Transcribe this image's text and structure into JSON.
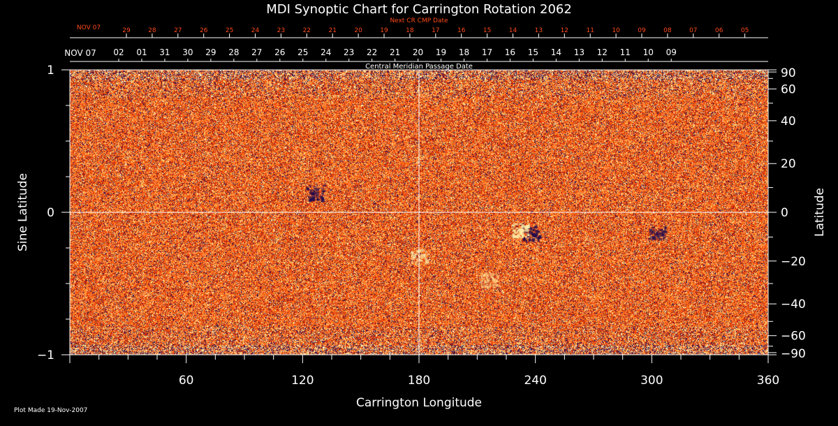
{
  "chart_data": {
    "type": "heatmap",
    "title": "MDI Synoptic Chart for Carrington Rotation 2062",
    "xlabel": "Carrington Longitude",
    "ylabel_left": "Sine Latitude",
    "ylabel_right": "Latitude",
    "top_axis_label": "Central Meridian Passage Date",
    "next_cr_label": "Next CR CMP Date",
    "footer": "Plot Made 19-Nov-2007",
    "xlim": [
      0,
      360
    ],
    "ylim": [
      -1,
      1
    ],
    "x_ticks": [
      60,
      120,
      180,
      240,
      300,
      360
    ],
    "x_tick_labels": [
      "60",
      "120",
      "180",
      "240",
      "300",
      "360"
    ],
    "y_ticks_sine": [
      -1,
      0,
      1
    ],
    "y_tick_labels_sine": [
      "−1",
      "0",
      "1"
    ],
    "y_ticks_latitude": [
      90,
      60,
      40,
      20,
      0,
      -20,
      -40,
      -60,
      -90
    ],
    "y_tick_labels_latitude": [
      "90",
      "60",
      "40",
      "20",
      "0",
      "−20",
      "−40",
      "−60",
      "−90"
    ],
    "cmp_start_label": "NOV 07",
    "cmp_dates": [
      "02",
      "01",
      "31",
      "30",
      "29",
      "28",
      "27",
      "26",
      "25",
      "24",
      "23",
      "22",
      "21",
      "20",
      "19",
      "18",
      "17",
      "16",
      "15",
      "14",
      "13",
      "12",
      "11",
      "10",
      "09"
    ],
    "next_cr_start_label": "NOV 07",
    "next_cr_dates": [
      "29",
      "28",
      "27",
      "26",
      "25",
      "24",
      "23",
      "22",
      "21",
      "20",
      "19",
      "18",
      "17",
      "16",
      "15",
      "14",
      "13",
      "12",
      "11",
      "10",
      "09",
      "08",
      "07",
      "06",
      "05"
    ],
    "reference_lines": {
      "longitude": 180,
      "sine_latitude": 0
    },
    "colors": {
      "background": "#000000",
      "axis": "#ffffff",
      "next_cr": "#ff4a1a",
      "map_base": "#ff5a10"
    }
  }
}
